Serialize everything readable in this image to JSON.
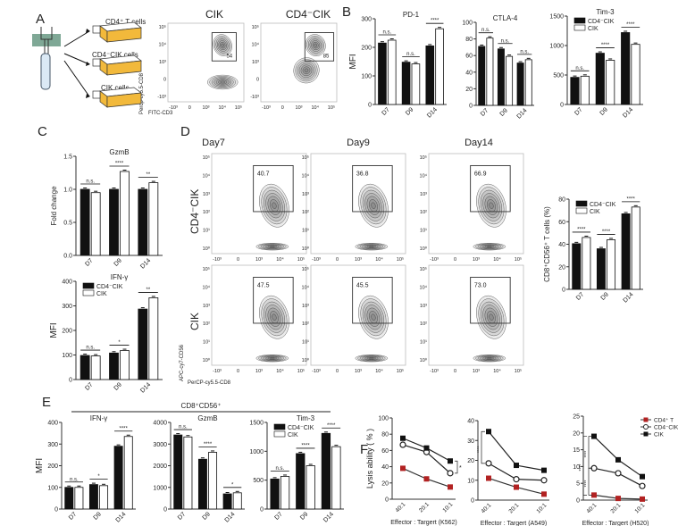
{
  "panel_labels": {
    "A": "A",
    "B": "B",
    "C": "C",
    "D": "D",
    "E": "E",
    "F": "F"
  },
  "colors": {
    "cd4_cik": "#111111",
    "cik": "#ffffff",
    "cd4_t": "#b22222",
    "axis": "#333333"
  },
  "panel_a": {
    "populations": [
      "CD4⁺ T cells",
      "CD4⁻CIK cells",
      "CIK cells"
    ],
    "flow_titles": [
      "CIK",
      "CD4⁻CIK"
    ],
    "gate_values": [
      "54",
      "85"
    ],
    "x_ticks": [
      "-10³",
      "0",
      "10³",
      "10⁴",
      "10⁵"
    ],
    "y_ticks": [
      "-10³",
      "0",
      "10³",
      "10⁴",
      "10⁵"
    ],
    "xlabel": "FITC-CD3",
    "ylabel": "Percp-cy5.5-CD8"
  },
  "panel_d": {
    "col_titles": [
      "Day7",
      "Day9",
      "Day14"
    ],
    "row_titles": [
      "CD4⁻CIK",
      "CIK"
    ],
    "gate_values": [
      [
        "40.7",
        "36.8",
        "66.9"
      ],
      [
        "47.5",
        "45.5",
        "73.0"
      ]
    ],
    "x_ticks": [
      "-10³",
      "0",
      "10³",
      "10⁴",
      "10⁵"
    ],
    "y_ticks": [
      "10⁰",
      "10¹",
      "10²",
      "10³",
      "10⁴",
      "10⁵"
    ],
    "xlabel": "PerCP-cy5.5-CD8",
    "ylabel": "APC-cy7-CD56"
  },
  "panel_e": {
    "header": "CD8⁺CD56⁺"
  },
  "chart_data": [
    {
      "id": "B-PD1",
      "type": "bar",
      "title": "PD-1",
      "ylabel": "MFI",
      "categories": [
        "D7",
        "D9",
        "D14"
      ],
      "ylim": [
        0,
        300
      ],
      "yticks": [
        0,
        100,
        200,
        300
      ],
      "series": [
        {
          "name": "CD4⁻CIK",
          "values": [
            215,
            148,
            205
          ]
        },
        {
          "name": "CIK",
          "values": [
            225,
            142,
            265
          ]
        }
      ],
      "significance": [
        "n.s.",
        "n.s.",
        "****"
      ]
    },
    {
      "id": "B-CTLA4",
      "type": "bar",
      "title": "CTLA-4",
      "ylabel": "",
      "categories": [
        "D7",
        "D9",
        "D14"
      ],
      "ylim": [
        0,
        100
      ],
      "yticks": [
        0,
        20,
        40,
        60,
        80,
        100
      ],
      "series": [
        {
          "name": "CD4⁻CIK",
          "values": [
            71,
            68,
            51
          ]
        },
        {
          "name": "CIK",
          "values": [
            81,
            59,
            55
          ]
        }
      ],
      "significance": [
        "n.s.",
        "n.s.",
        "n.s."
      ]
    },
    {
      "id": "B-Tim3",
      "type": "bar",
      "title": "Tim-3",
      "ylabel": "",
      "categories": [
        "D7",
        "D9",
        "D14"
      ],
      "ylim": [
        0,
        1500
      ],
      "yticks": [
        0,
        500,
        1000,
        1500
      ],
      "series": [
        {
          "name": "CD4⁻CIK",
          "values": [
            460,
            870,
            1220
          ]
        },
        {
          "name": "CIK",
          "values": [
            480,
            750,
            1020
          ]
        }
      ],
      "significance": [
        "n.s.",
        "****",
        "****"
      ],
      "legend": "top-left"
    },
    {
      "id": "C-GzmB",
      "type": "bar",
      "title": "GzmB",
      "ylabel": "Fold change",
      "categories": [
        "D7",
        "D9",
        "D14"
      ],
      "ylim": [
        0,
        1.5
      ],
      "yticks": [
        0.0,
        0.5,
        1.0,
        1.5
      ],
      "ytick_labels": [
        "0.0",
        "0.5",
        "1.0",
        "1.5"
      ],
      "series": [
        {
          "name": "CD4⁻CIK",
          "values": [
            1.0,
            1.0,
            1.0
          ]
        },
        {
          "name": "CIK",
          "values": [
            0.95,
            1.27,
            1.1
          ]
        }
      ],
      "significance": [
        "n.s.",
        "****",
        "**"
      ]
    },
    {
      "id": "C-IFNg",
      "type": "bar",
      "title": "IFN-γ",
      "ylabel": "MFI",
      "categories": [
        "D7",
        "D9",
        "D14"
      ],
      "ylim": [
        0,
        400
      ],
      "yticks": [
        0,
        100,
        200,
        300,
        400
      ],
      "series": [
        {
          "name": "CD4⁻CIK",
          "values": [
            98,
            108,
            287
          ]
        },
        {
          "name": "CIK",
          "values": [
            96,
            118,
            333
          ]
        }
      ],
      "significance": [
        "n.s.",
        "*",
        "**"
      ],
      "legend": "top-left"
    },
    {
      "id": "D-pct",
      "type": "bar",
      "title": "",
      "ylabel": "CD8⁺CD56⁺ T cells (%)",
      "categories": [
        "D7",
        "D9",
        "D14"
      ],
      "ylim": [
        0,
        80
      ],
      "yticks": [
        0,
        20,
        40,
        60,
        80
      ],
      "series": [
        {
          "name": "CD4⁻CIK",
          "values": [
            40.5,
            36,
            67
          ]
        },
        {
          "name": "CIK",
          "values": [
            46,
            44,
            73
          ]
        }
      ],
      "significance": [
        "****",
        "****",
        "****"
      ],
      "legend": "top-left"
    },
    {
      "id": "E-IFNg",
      "type": "bar",
      "title": "IFN-γ",
      "ylabel": "MFI",
      "categories": [
        "D7",
        "D9",
        "D14"
      ],
      "ylim": [
        0,
        400
      ],
      "yticks": [
        0,
        100,
        200,
        300,
        400
      ],
      "series": [
        {
          "name": "CD4⁻CIK",
          "values": [
            100,
            113,
            290
          ]
        },
        {
          "name": "CIK",
          "values": [
            100,
            108,
            335
          ]
        }
      ],
      "significance": [
        "n.s.",
        "*",
        "****"
      ]
    },
    {
      "id": "E-GzmB",
      "type": "bar",
      "title": "GzmB",
      "ylabel": "",
      "categories": [
        "D7",
        "D9",
        "D14"
      ],
      "ylim": [
        0,
        4000
      ],
      "yticks": [
        0,
        1000,
        2000,
        3000,
        4000
      ],
      "series": [
        {
          "name": "CD4⁻CIK",
          "values": [
            3420,
            2300,
            700
          ]
        },
        {
          "name": "CIK",
          "values": [
            3330,
            2620,
            750
          ]
        }
      ],
      "significance": [
        "n.s.",
        "****",
        "*"
      ]
    },
    {
      "id": "E-Tim3",
      "type": "bar",
      "title": "Tim-3",
      "ylabel": "",
      "categories": [
        "D7",
        "D9",
        "D14"
      ],
      "ylim": [
        0,
        1500
      ],
      "yticks": [
        0,
        500,
        1000,
        1500
      ],
      "series": [
        {
          "name": "CD4⁻CIK",
          "values": [
            520,
            960,
            1310
          ]
        },
        {
          "name": "CIK",
          "values": [
            565,
            750,
            1080
          ]
        }
      ],
      "significance": [
        "n.s.",
        "****",
        "****"
      ],
      "legend": "top-left"
    },
    {
      "id": "F-K562",
      "type": "line",
      "title": "",
      "ylabel": "Lysis ability ( % )",
      "xlabel": "Effector : Targert  (K562)",
      "categories": [
        "40:1",
        "20:1",
        "10:1"
      ],
      "ylim": [
        0,
        100
      ],
      "yticks": [
        0,
        20,
        40,
        60,
        80,
        100
      ],
      "series": [
        {
          "name": "CD4⁺ T",
          "values": [
            38,
            25,
            15
          ]
        },
        {
          "name": "CD4⁻CIK",
          "values": [
            67,
            58,
            32
          ]
        },
        {
          "name": "CIK",
          "values": [
            75,
            63,
            47
          ]
        }
      ],
      "significance": [
        "*"
      ]
    },
    {
      "id": "F-A549",
      "type": "line",
      "title": "",
      "ylabel": "",
      "xlabel": "Effector : Targert  (A549)",
      "categories": [
        "40:1",
        "20:1",
        "10:1"
      ],
      "ylim": [
        0,
        40
      ],
      "yticks": [
        0,
        10,
        20,
        30,
        40
      ],
      "series": [
        {
          "name": "CD4⁺ T",
          "values": [
            11,
            6.5,
            3
          ]
        },
        {
          "name": "CD4⁻CIK",
          "values": [
            18.5,
            10.5,
            10
          ]
        },
        {
          "name": "CIK",
          "values": [
            34.5,
            17.5,
            15
          ]
        }
      ],
      "significance": [
        "****"
      ]
    },
    {
      "id": "F-H520",
      "type": "line",
      "title": "",
      "ylabel": "",
      "xlabel": "Effector : Targert  (H520)",
      "categories": [
        "40:1",
        "20:1",
        "10:1"
      ],
      "ylim": [
        0,
        25
      ],
      "yticks": [
        0,
        5,
        10,
        15,
        20,
        25
      ],
      "series": [
        {
          "name": "CD4⁺ T",
          "values": [
            1.5,
            0.5,
            0.3
          ]
        },
        {
          "name": "CD4⁻CIK",
          "values": [
            9.5,
            8,
            4.2
          ]
        },
        {
          "name": "CIK",
          "values": [
            19,
            12,
            7
          ]
        }
      ],
      "significance": [
        "****",
        "****",
        "****"
      ],
      "legend": "top-right"
    }
  ]
}
